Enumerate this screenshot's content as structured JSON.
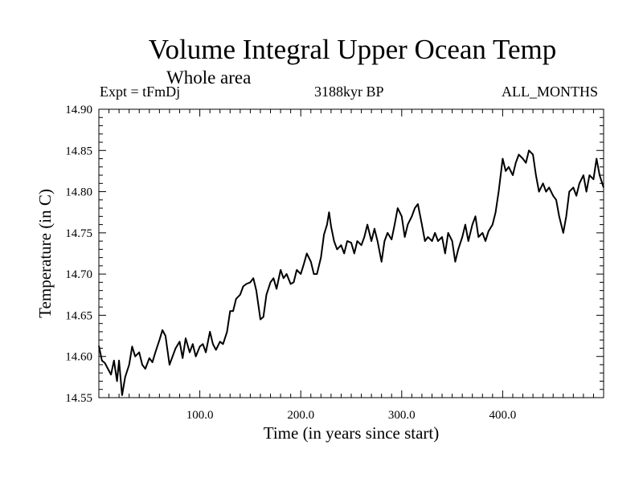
{
  "chart_data": {
    "type": "line",
    "title": "Volume Integral Upper Ocean Temp",
    "subtitle": "Whole area",
    "experiment": "Expt = tFmDj",
    "period": "3188kyr BP",
    "months": "ALL_MONTHS",
    "xlabel": "Time (in years since start)",
    "ylabel": "Temperature (in C)",
    "xlim": [
      0,
      500
    ],
    "ylim": [
      14.55,
      14.9
    ],
    "xticks": [
      100,
      200,
      300,
      400
    ],
    "xtick_labels": [
      "100.0",
      "200.0",
      "300.0",
      "400.0"
    ],
    "yticks": [
      14.55,
      14.6,
      14.65,
      14.7,
      14.75,
      14.8,
      14.85,
      14.9
    ],
    "ytick_labels": [
      "14.55",
      "14.60",
      "14.65",
      "14.70",
      "14.75",
      "14.80",
      "14.85",
      "14.90"
    ],
    "grid": false,
    "series": [
      {
        "name": "Volume Integral Upper Ocean Temp",
        "color": "#000000",
        "points": [
          [
            0,
            14.613
          ],
          [
            3,
            14.595
          ],
          [
            6,
            14.592
          ],
          [
            9,
            14.585
          ],
          [
            12,
            14.578
          ],
          [
            15,
            14.595
          ],
          [
            18,
            14.57
          ],
          [
            20,
            14.595
          ],
          [
            23,
            14.553
          ],
          [
            26,
            14.575
          ],
          [
            30,
            14.59
          ],
          [
            33,
            14.612
          ],
          [
            36,
            14.6
          ],
          [
            40,
            14.605
          ],
          [
            43,
            14.59
          ],
          [
            46,
            14.585
          ],
          [
            50,
            14.598
          ],
          [
            53,
            14.593
          ],
          [
            56,
            14.605
          ],
          [
            60,
            14.62
          ],
          [
            63,
            14.632
          ],
          [
            66,
            14.625
          ],
          [
            70,
            14.59
          ],
          [
            73,
            14.6
          ],
          [
            76,
            14.61
          ],
          [
            80,
            14.618
          ],
          [
            83,
            14.598
          ],
          [
            86,
            14.622
          ],
          [
            90,
            14.605
          ],
          [
            93,
            14.615
          ],
          [
            96,
            14.6
          ],
          [
            100,
            14.612
          ],
          [
            103,
            14.615
          ],
          [
            106,
            14.605
          ],
          [
            110,
            14.63
          ],
          [
            113,
            14.615
          ],
          [
            116,
            14.608
          ],
          [
            120,
            14.618
          ],
          [
            123,
            14.615
          ],
          [
            127,
            14.63
          ],
          [
            130,
            14.655
          ],
          [
            133,
            14.655
          ],
          [
            136,
            14.67
          ],
          [
            140,
            14.675
          ],
          [
            143,
            14.685
          ],
          [
            146,
            14.688
          ],
          [
            150,
            14.69
          ],
          [
            153,
            14.695
          ],
          [
            156,
            14.68
          ],
          [
            160,
            14.645
          ],
          [
            163,
            14.648
          ],
          [
            166,
            14.675
          ],
          [
            170,
            14.69
          ],
          [
            173,
            14.695
          ],
          [
            176,
            14.682
          ],
          [
            180,
            14.705
          ],
          [
            183,
            14.695
          ],
          [
            186,
            14.7
          ],
          [
            190,
            14.688
          ],
          [
            193,
            14.69
          ],
          [
            196,
            14.705
          ],
          [
            200,
            14.7
          ],
          [
            203,
            14.712
          ],
          [
            206,
            14.725
          ],
          [
            210,
            14.715
          ],
          [
            213,
            14.7
          ],
          [
            216,
            14.7
          ],
          [
            220,
            14.72
          ],
          [
            223,
            14.748
          ],
          [
            226,
            14.76
          ],
          [
            228,
            14.775
          ],
          [
            230,
            14.758
          ],
          [
            233,
            14.74
          ],
          [
            236,
            14.73
          ],
          [
            240,
            14.735
          ],
          [
            243,
            14.725
          ],
          [
            246,
            14.74
          ],
          [
            250,
            14.738
          ],
          [
            253,
            14.725
          ],
          [
            256,
            14.74
          ],
          [
            260,
            14.735
          ],
          [
            263,
            14.745
          ],
          [
            266,
            14.76
          ],
          [
            270,
            14.74
          ],
          [
            273,
            14.755
          ],
          [
            276,
            14.74
          ],
          [
            280,
            14.715
          ],
          [
            283,
            14.74
          ],
          [
            286,
            14.75
          ],
          [
            290,
            14.742
          ],
          [
            293,
            14.76
          ],
          [
            296,
            14.78
          ],
          [
            300,
            14.77
          ],
          [
            303,
            14.745
          ],
          [
            306,
            14.76
          ],
          [
            310,
            14.77
          ],
          [
            313,
            14.78
          ],
          [
            316,
            14.785
          ],
          [
            320,
            14.76
          ],
          [
            323,
            14.74
          ],
          [
            326,
            14.745
          ],
          [
            330,
            14.74
          ],
          [
            333,
            14.75
          ],
          [
            336,
            14.74
          ],
          [
            340,
            14.745
          ],
          [
            343,
            14.725
          ],
          [
            346,
            14.75
          ],
          [
            350,
            14.74
          ],
          [
            353,
            14.715
          ],
          [
            356,
            14.73
          ],
          [
            360,
            14.745
          ],
          [
            363,
            14.76
          ],
          [
            366,
            14.74
          ],
          [
            370,
            14.76
          ],
          [
            373,
            14.77
          ],
          [
            376,
            14.745
          ],
          [
            380,
            14.75
          ],
          [
            383,
            14.74
          ],
          [
            386,
            14.752
          ],
          [
            390,
            14.76
          ],
          [
            393,
            14.775
          ],
          [
            396,
            14.8
          ],
          [
            400,
            14.84
          ],
          [
            403,
            14.825
          ],
          [
            406,
            14.83
          ],
          [
            410,
            14.82
          ],
          [
            413,
            14.835
          ],
          [
            416,
            14.845
          ],
          [
            420,
            14.84
          ],
          [
            423,
            14.835
          ],
          [
            426,
            14.85
          ],
          [
            430,
            14.845
          ],
          [
            433,
            14.82
          ],
          [
            436,
            14.8
          ],
          [
            440,
            14.81
          ],
          [
            443,
            14.8
          ],
          [
            446,
            14.805
          ],
          [
            450,
            14.795
          ],
          [
            453,
            14.79
          ],
          [
            456,
            14.77
          ],
          [
            460,
            14.75
          ],
          [
            463,
            14.77
          ],
          [
            466,
            14.8
          ],
          [
            470,
            14.805
          ],
          [
            473,
            14.795
          ],
          [
            476,
            14.81
          ],
          [
            480,
            14.82
          ],
          [
            483,
            14.8
          ],
          [
            486,
            14.82
          ],
          [
            490,
            14.815
          ],
          [
            493,
            14.84
          ],
          [
            496,
            14.82
          ],
          [
            500,
            14.805
          ]
        ]
      }
    ]
  }
}
